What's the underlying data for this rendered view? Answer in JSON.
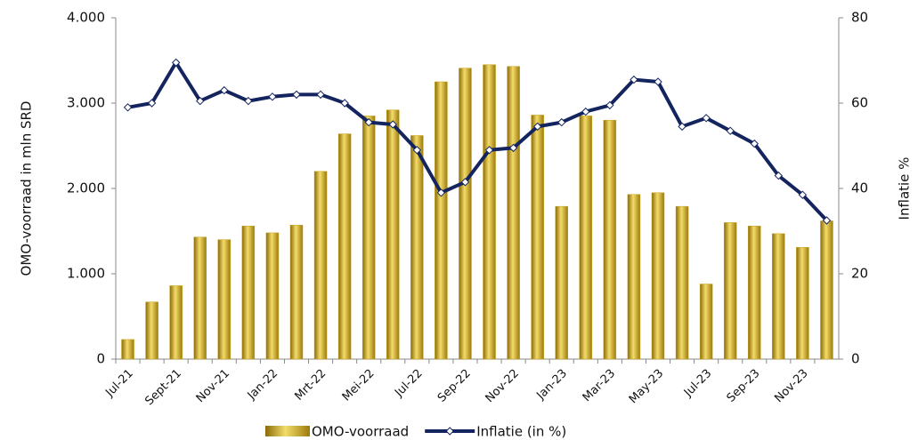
{
  "chart_data": {
    "type": "bar_line",
    "categories": [
      "Jul-21",
      null,
      "Sept-21",
      null,
      "Nov-21",
      null,
      "Jan-22",
      null,
      "Mrt-22",
      null,
      "Mei-22",
      null,
      "Jul-22",
      null,
      "Sep-22",
      null,
      "Nov-22",
      null,
      "Jan-23",
      null,
      "Mar-23",
      null,
      "May-23",
      null,
      "Jul-23",
      null,
      "Sep-23",
      null,
      "Nov-23",
      null
    ],
    "series": [
      {
        "name": "OMO-voorraad",
        "color": "#c9a21a",
        "type": "bar",
        "axis": "y",
        "values": [
          230,
          670,
          860,
          1430,
          1400,
          1560,
          1480,
          1570,
          2200,
          2640,
          2850,
          2920,
          2620,
          3250,
          3410,
          3450,
          3430,
          2860,
          1790,
          2850,
          2800,
          1930,
          1950,
          1790,
          880,
          1600,
          1560,
          1470,
          1310,
          1620
        ]
      },
      {
        "name": "Inflatie (in %)",
        "color": "#14245e",
        "type": "line",
        "axis": "y2",
        "values": [
          59,
          60,
          69.5,
          60.5,
          63,
          60.5,
          61.5,
          62,
          62,
          60,
          55.5,
          55,
          49,
          39,
          41.5,
          49,
          49.5,
          54.5,
          55.5,
          58,
          59.5,
          65.5,
          65,
          54.5,
          56.5,
          53.5,
          50.5,
          43,
          38.5,
          32.5
        ]
      }
    ],
    "ylabel": "OMO-voorraad in mln SRD",
    "y2label": "Inflatie %",
    "ylim": [
      0,
      4000
    ],
    "yticks": [
      0,
      {
        "value": 1000,
        "label": "1.000"
      },
      {
        "value": 2000,
        "label": "2.000"
      },
      {
        "value": 3000,
        "label": "3.000"
      },
      {
        "value": 4000,
        "label": "4.000"
      }
    ],
    "y2lim": [
      0,
      80
    ],
    "y2ticks": [
      0,
      20,
      40,
      60,
      80
    ]
  }
}
